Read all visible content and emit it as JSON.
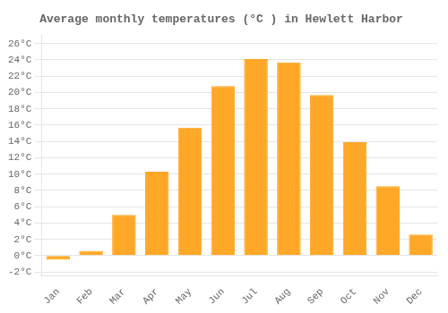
{
  "chart_data": {
    "type": "bar",
    "title": "Average monthly temperatures (°C ) in Hewlett Harbor",
    "categories": [
      "Jan",
      "Feb",
      "Mar",
      "Apr",
      "May",
      "Jun",
      "Jul",
      "Aug",
      "Sep",
      "Oct",
      "Nov",
      "Dec"
    ],
    "values": [
      -0.5,
      0.6,
      5.0,
      10.3,
      15.7,
      20.8,
      24.1,
      23.7,
      19.7,
      13.9,
      8.5,
      2.6
    ],
    "color": "#FFA726",
    "ylim": [
      -2.5,
      27
    ],
    "yticks": [
      {
        "value": -2,
        "label": "-2°C"
      },
      {
        "value": 0,
        "label": "0°C"
      },
      {
        "value": 2,
        "label": "2°C"
      },
      {
        "value": 4,
        "label": "4°C"
      },
      {
        "value": 6,
        "label": "6°C"
      },
      {
        "value": 8,
        "label": "8°C"
      },
      {
        "value": 10,
        "label": "10°C"
      },
      {
        "value": 12,
        "label": "12°C"
      },
      {
        "value": 14,
        "label": "14°C"
      },
      {
        "value": 16,
        "label": "16°C"
      },
      {
        "value": 18,
        "label": "18°C"
      },
      {
        "value": 20,
        "label": "20°C"
      },
      {
        "value": 22,
        "label": "22°C"
      },
      {
        "value": 24,
        "label": "24°C"
      },
      {
        "value": 26,
        "label": "26°C"
      }
    ],
    "grid": true
  }
}
